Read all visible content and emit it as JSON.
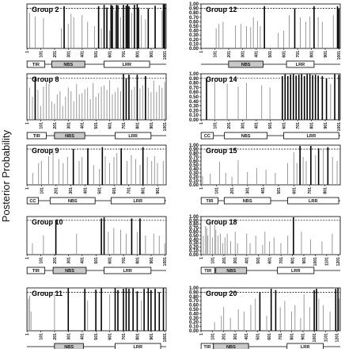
{
  "figure": {
    "ylabel": "Posterior Probability",
    "threshold": 0.9,
    "ylim": [
      0,
      1.0
    ]
  },
  "chart_data": [
    {
      "type": "bar",
      "title": "Group 2",
      "xmax": 1010,
      "xticks": [
        "1",
        "101",
        "201",
        "301",
        "401",
        "501",
        "601",
        "701",
        "801",
        "901",
        "1001"
      ],
      "yticks": [],
      "domains": [
        {
          "label": "TIR",
          "start": 1,
          "end": 130,
          "shade": false
        },
        {
          "label": "NBS",
          "start": 180,
          "end": 420,
          "shade": true
        },
        {
          "label": "LRR",
          "start": 560,
          "end": 890,
          "shade": false
        }
      ],
      "positions": [
        20,
        60,
        120,
        250,
        270,
        300,
        320,
        340,
        400,
        440,
        490,
        520,
        540,
        560,
        580,
        600,
        610,
        620,
        640,
        650,
        660,
        680,
        700,
        720,
        730,
        740,
        760,
        780,
        800,
        810,
        830,
        860,
        880,
        930,
        980,
        990,
        1000
      ],
      "values": [
        0.8,
        0.72,
        0.68,
        0.45,
        0.95,
        0.55,
        0.78,
        0.7,
        0.75,
        0.6,
        0.5,
        0.95,
        0.45,
        0.98,
        0.92,
        0.4,
        0.98,
        0.96,
        0.85,
        0.98,
        0.97,
        0.7,
        0.98,
        0.96,
        0.99,
        0.95,
        0.8,
        0.98,
        0.99,
        0.92,
        0.75,
        0.65,
        0.9,
        0.96,
        0.85,
        0.99,
        0.99
      ]
    },
    {
      "type": "bar",
      "title": "Group 12",
      "xmax": 1010,
      "xticks": [
        "1",
        "101",
        "201",
        "301",
        "401",
        "501",
        "601",
        "701",
        "801",
        "901",
        "1001"
      ],
      "yticks": [
        "0.00",
        "0.10",
        "0.20",
        "0.30",
        "0.40",
        "0.50",
        "0.60",
        "0.70",
        "0.80",
        "0.90",
        "1.00"
      ],
      "domains": [
        {
          "label": "NBS",
          "start": 200,
          "end": 450,
          "shade": true
        },
        {
          "label": "LRR",
          "start": 620,
          "end": 820,
          "shade": false
        }
      ],
      "positions": [
        110,
        130,
        160,
        250,
        290,
        330,
        360,
        380,
        410,
        430,
        460,
        560,
        600,
        640,
        680,
        720,
        760,
        790,
        820,
        850,
        880,
        960,
        990,
        1000
      ],
      "values": [
        0.45,
        0.55,
        0.6,
        0.52,
        0.55,
        0.5,
        0.48,
        0.7,
        0.62,
        0.5,
        0.95,
        0.35,
        0.4,
        0.75,
        0.9,
        0.7,
        0.6,
        0.72,
        0.95,
        0.7,
        0.6,
        0.75,
        0.95,
        0.9
      ]
    },
    {
      "type": "bar",
      "title": "Group 8",
      "xmax": 1010,
      "xticks": [
        "1",
        "101",
        "201",
        "301",
        "401",
        "501",
        "601",
        "701",
        "801",
        "901",
        "1001"
      ],
      "yticks": [],
      "domains": [
        {
          "label": "TIR",
          "start": 1,
          "end": 140,
          "shade": false
        },
        {
          "label": "NBS",
          "start": 200,
          "end": 420,
          "shade": true
        },
        {
          "label": "LRR",
          "start": 640,
          "end": 900,
          "shade": false
        }
      ],
      "positions": [
        20,
        40,
        60,
        80,
        100,
        120,
        140,
        160,
        180,
        200,
        220,
        240,
        260,
        280,
        300,
        320,
        340,
        360,
        380,
        400,
        420,
        440,
        460,
        480,
        500,
        520,
        540,
        560,
        580,
        600,
        620,
        640,
        660,
        680,
        700,
        720,
        740,
        760,
        780,
        800,
        820,
        840,
        860,
        880,
        900,
        920,
        940,
        960,
        980,
        1000
      ],
      "values": [
        0.7,
        0.5,
        0.92,
        0.65,
        0.3,
        0.72,
        0.82,
        0.78,
        0.4,
        0.35,
        0.55,
        0.62,
        0.3,
        0.5,
        0.7,
        0.62,
        0.4,
        0.78,
        0.55,
        0.58,
        0.66,
        0.7,
        0.45,
        0.8,
        0.5,
        0.58,
        0.72,
        0.75,
        0.65,
        0.86,
        0.55,
        0.6,
        0.7,
        0.62,
        0.99,
        0.9,
        0.98,
        0.65,
        0.72,
        0.98,
        0.68,
        0.75,
        0.95,
        0.7,
        0.6,
        0.85,
        0.6,
        0.75,
        0.7,
        0.82
      ]
    },
    {
      "type": "bar",
      "title": "Group 14",
      "xmax": 1010,
      "xticks": [
        "1",
        "101",
        "201",
        "301",
        "401",
        "501",
        "601",
        "701",
        "801",
        "901",
        "1001"
      ],
      "yticks": [
        "0.00",
        "0.10",
        "0.20",
        "0.30",
        "0.40",
        "0.50",
        "0.60",
        "0.70",
        "0.80",
        "0.90",
        "1.00"
      ],
      "domains": [
        {
          "label": "CC",
          "start": 1,
          "end": 90,
          "shade": false
        },
        {
          "label": "NBS",
          "start": 170,
          "end": 480,
          "shade": false
        },
        {
          "label": "LRR",
          "start": 600,
          "end": 1000,
          "shade": false
        }
      ],
      "positions": [
        40,
        100,
        190,
        270,
        330,
        440,
        500,
        590,
        610,
        630,
        650,
        670,
        690,
        710,
        730,
        750,
        770,
        790,
        810,
        830,
        850,
        880,
        910,
        940,
        970,
        1000
      ],
      "values": [
        0.9,
        0.88,
        0.78,
        0.72,
        0.8,
        0.75,
        0.7,
        0.95,
        0.99,
        0.95,
        0.98,
        0.99,
        0.96,
        0.98,
        0.99,
        0.95,
        0.99,
        0.99,
        0.97,
        0.98,
        0.96,
        0.95,
        0.9,
        0.78,
        0.99,
        0.98
      ]
    },
    {
      "type": "bar",
      "title": "Group 9",
      "xmax": 960,
      "xticks": [
        "1",
        "101",
        "201",
        "301",
        "401",
        "501",
        "601",
        "701",
        "801",
        "901"
      ],
      "yticks": [],
      "domains": [
        {
          "label": "CC",
          "start": 1,
          "end": 80,
          "shade": false
        },
        {
          "label": "NBS",
          "start": 160,
          "end": 470,
          "shade": false
        },
        {
          "label": "LRR",
          "start": 580,
          "end": 950,
          "shade": false
        }
      ],
      "positions": [
        40,
        80,
        100,
        150,
        180,
        220,
        250,
        280,
        320,
        360,
        380,
        420,
        460,
        500,
        520,
        540,
        570,
        600,
        620,
        650,
        690,
        720,
        750,
        780,
        800,
        830,
        860,
        880,
        900,
        940
      ],
      "values": [
        0.3,
        0.55,
        0.6,
        0.72,
        0.85,
        0.65,
        0.55,
        0.7,
        0.9,
        0.6,
        0.7,
        0.92,
        0.5,
        0.4,
        0.95,
        0.72,
        0.55,
        0.7,
        0.8,
        0.92,
        0.6,
        0.75,
        0.65,
        0.5,
        0.95,
        0.7,
        0.6,
        0.72,
        0.55,
        0.6
      ]
    },
    {
      "type": "bar",
      "title": "Group 15",
      "xmax": 900,
      "xticks": [
        "1",
        "101",
        "201",
        "301",
        "401",
        "501",
        "601",
        "701",
        "801"
      ],
      "yticks": [
        "0.00",
        "0.10",
        "0.20",
        "0.30",
        "0.40",
        "0.50",
        "0.60",
        "0.70",
        "0.80",
        "0.90",
        "1.00"
      ],
      "domains": [
        {
          "label": "TIR",
          "start": 1,
          "end": 110,
          "shade": false
        },
        {
          "label": "NBS",
          "start": 150,
          "end": 450,
          "shade": false
        },
        {
          "label": "LRR",
          "start": 560,
          "end": 890,
          "shade": false
        }
      ],
      "positions": [
        10,
        60,
        120,
        160,
        200,
        240,
        300,
        360,
        420,
        480,
        560,
        600,
        620,
        640,
        660,
        680,
        710,
        740,
        760,
        790,
        820,
        850,
        880
      ],
      "values": [
        0.22,
        0.28,
        0.58,
        0.3,
        0.2,
        0.62,
        0.32,
        0.42,
        0.38,
        0.3,
        0.55,
        0.82,
        0.55,
        0.98,
        0.7,
        0.6,
        0.98,
        0.75,
        0.92,
        0.88,
        0.95,
        0.7,
        0.6
      ]
    },
    {
      "type": "bar",
      "title": "Group 10",
      "xmax": 1010,
      "xticks": [
        "1",
        "101",
        "201",
        "301",
        "401",
        "501",
        "601",
        "701",
        "801",
        "901",
        "1001"
      ],
      "yticks": [],
      "domains": [
        {
          "label": "TIR",
          "start": 1,
          "end": 130,
          "shade": false
        },
        {
          "label": "NBS",
          "start": 190,
          "end": 430,
          "shade": true
        },
        {
          "label": "LRR",
          "start": 560,
          "end": 900,
          "shade": false
        }
      ],
      "positions": [
        40,
        120,
        210,
        360,
        540,
        560,
        590,
        630,
        680,
        720,
        760,
        800,
        820,
        860,
        920,
        960,
        1000
      ],
      "values": [
        0.3,
        0.5,
        0.9,
        0.55,
        0.95,
        0.98,
        0.6,
        0.7,
        0.65,
        0.55,
        0.95,
        0.6,
        0.95,
        0.5,
        0.55,
        0.5,
        0.3
      ]
    },
    {
      "type": "bar",
      "title": "Group 18",
      "xmax": 1220,
      "xticks": [
        "1",
        "101",
        "201",
        "301",
        "401",
        "501",
        "601",
        "701",
        "801",
        "901",
        "1001",
        "1101",
        "1201"
      ],
      "yticks": [
        "0.00",
        "0.10",
        "0.20",
        "0.30",
        "0.40",
        "0.50",
        "0.60",
        "0.70",
        "0.80",
        "0.90",
        "1.00"
      ],
      "domains": [
        {
          "label": "TIR",
          "start": 1,
          "end": 120,
          "shade": false
        },
        {
          "label": "NBS",
          "start": 130,
          "end": 400,
          "shade": true
        },
        {
          "label": "LRR",
          "start": 670,
          "end": 990,
          "shade": false
        }
      ],
      "positions": [
        20,
        40,
        50,
        60,
        80,
        100,
        120,
        130,
        150,
        170,
        190,
        210,
        230,
        260,
        300,
        320,
        400,
        430,
        480,
        540,
        560,
        600,
        640,
        700,
        760,
        810,
        880,
        960,
        1060,
        1150
      ],
      "values": [
        0.5,
        0.75,
        0.7,
        0.5,
        0.8,
        0.45,
        0.78,
        0.65,
        0.5,
        0.55,
        0.3,
        0.45,
        0.55,
        0.35,
        0.6,
        0.3,
        0.55,
        0.3,
        0.5,
        0.25,
        0.6,
        0.35,
        0.45,
        0.3,
        0.5,
        0.98,
        0.6,
        0.4,
        0.35,
        0.55
      ]
    },
    {
      "type": "bar",
      "title": "Group 11",
      "xmax": 1010,
      "xticks": [
        "1",
        "101",
        "201",
        "301",
        "401",
        "501",
        "601",
        "701",
        "801",
        "901",
        "1001"
      ],
      "yticks": [],
      "domains": [
        {
          "label": "NBS",
          "start": 200,
          "end": 410,
          "shade": true
        },
        {
          "label": "LRR",
          "start": 640,
          "end": 970,
          "shade": false
        }
      ],
      "positions": [
        10,
        20,
        30,
        200,
        300,
        420,
        440,
        500,
        540,
        600,
        640,
        660,
        700,
        720,
        740,
        770,
        800,
        830,
        850,
        880,
        900,
        930,
        960,
        990
      ],
      "values": [
        0.75,
        0.82,
        0.45,
        0.85,
        0.99,
        0.98,
        0.7,
        0.96,
        0.99,
        0.85,
        0.99,
        0.95,
        0.98,
        0.99,
        0.98,
        0.99,
        0.92,
        0.7,
        0.98,
        0.99,
        0.95,
        0.98,
        0.9,
        0.99
      ]
    },
    {
      "type": "bar",
      "title": "Group 20",
      "xmax": 1230,
      "xticks": [
        "1",
        "101",
        "201",
        "301",
        "401",
        "501",
        "601",
        "701",
        "801",
        "901",
        "1001",
        "1101",
        "1201"
      ],
      "yticks": [
        "0.00",
        "0.10",
        "0.20",
        "0.30",
        "0.40",
        "0.50",
        "0.60",
        "0.70",
        "0.80",
        "0.90",
        "1.00"
      ],
      "domains": [
        {
          "label": "TIR",
          "start": 1,
          "end": 110,
          "shade": false
        },
        {
          "label": "NBS",
          "start": 110,
          "end": 420,
          "shade": true
        },
        {
          "label": "LRR",
          "start": 760,
          "end": 1080,
          "shade": false
        }
      ],
      "positions": [
        120,
        180,
        200,
        260,
        330,
        380,
        440,
        480,
        520,
        580,
        620,
        660,
        700,
        740,
        800,
        830,
        880,
        910,
        960,
        1000,
        1020,
        1040,
        1080,
        1140,
        1190,
        1210,
        1220
      ],
      "values": [
        0.2,
        0.35,
        0.55,
        0.3,
        0.5,
        0.45,
        0.6,
        0.75,
        0.9,
        0.35,
        0.98,
        0.95,
        0.55,
        0.7,
        0.45,
        0.6,
        0.3,
        0.85,
        0.55,
        0.95,
        0.98,
        0.75,
        0.6,
        0.45,
        0.98,
        0.99,
        0.75
      ]
    }
  ]
}
